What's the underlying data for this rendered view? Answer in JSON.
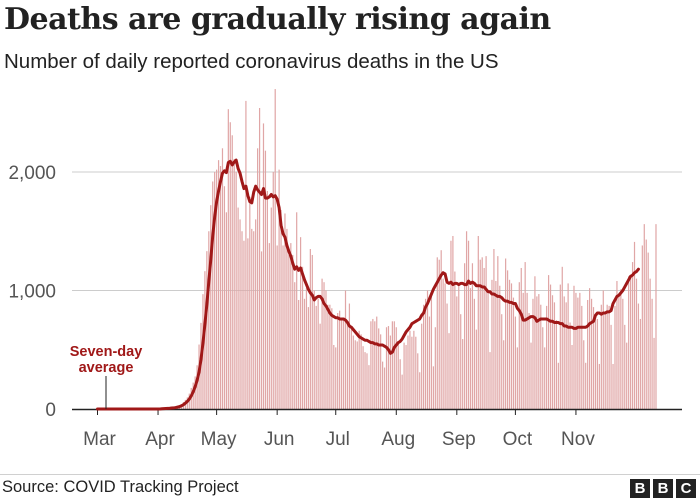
{
  "title": "Deaths are gradually rising again",
  "subtitle": "Number of daily reported coronavirus deaths in the US",
  "source": "Source: COVID Tracking Project",
  "logo": {
    "letters": [
      "B",
      "B",
      "C"
    ]
  },
  "colors": {
    "bars": "#e0a6a6",
    "line": "#a01818",
    "grid": "#cccccc",
    "text": "#222222",
    "axis": "#222222"
  },
  "chart_data": {
    "type": "bar",
    "title": "Deaths are gradually rising again",
    "subtitle": "Number of daily reported coronavirus deaths in the US",
    "xlabel": "",
    "ylabel": "",
    "ylim": [
      0,
      2700
    ],
    "yticks": [
      0,
      1000,
      2000
    ],
    "ytick_labels": [
      "0",
      "1,000",
      "2,000"
    ],
    "xtick_labels": [
      "Mar",
      "Apr",
      "May",
      "Jun",
      "Jul",
      "Aug",
      "Sep",
      "Oct",
      "Nov"
    ],
    "grid": true,
    "annotation": {
      "text": [
        "Seven-day",
        "average"
      ],
      "target": "7-day average line, early March"
    },
    "series": [
      {
        "name": "Daily deaths",
        "type": "bar",
        "x_start": "2020-03-01",
        "x_end": "2020-11-18",
        "values": [
          0,
          0,
          0,
          0,
          0,
          0,
          0,
          0,
          0,
          0,
          0,
          0,
          0,
          0,
          0,
          0,
          0,
          0,
          0,
          0,
          0,
          0,
          0,
          0,
          0,
          0,
          0,
          0,
          0,
          0,
          0,
          0,
          1,
          3,
          4,
          7,
          9,
          10,
          12,
          14,
          18,
          22,
          29,
          40,
          59,
          77,
          98,
          130,
          178,
          223,
          275,
          369,
          544,
          727,
          969,
          1163,
          1332,
          1500,
          1720,
          1920,
          2000,
          2020,
          2100,
          2050,
          2200,
          1880,
          1660,
          2530,
          2420,
          2310,
          2110,
          2000,
          1700,
          1600,
          1500,
          1420,
          2600,
          1440,
          1790,
          1520,
          1500,
          1600,
          2200,
          2540,
          1330,
          2410,
          2180,
          1840,
          1400,
          1700,
          2000,
          2700,
          1380,
          2020,
          1680,
          1380,
          1650,
          1520,
          1300,
          1400,
          1300,
          1070,
          1660,
          920,
          1450,
          1200,
          930,
          1020,
          860,
          1350,
          1300,
          1000,
          870,
          930,
          720,
          1100,
          1070,
          1000,
          880,
          880,
          850,
          540,
          520,
          810,
          830,
          770,
          760,
          1000,
          740,
          890,
          670,
          620,
          580,
          570,
          660,
          630,
          530,
          480,
          470,
          370,
          740,
          760,
          740,
          780,
          680,
          630,
          400,
          350,
          690,
          700,
          620,
          740,
          740,
          690,
          550,
          420,
          290,
          560,
          540,
          620,
          660,
          610,
          660,
          610,
          470,
          310,
          720,
          880,
          930,
          1000,
          780,
          950,
          360,
          690,
          1280,
          1260,
          1340,
          1100,
          1060,
          890,
          640,
          1420,
          1460,
          1160,
          950,
          1040,
          800,
          590,
          1230,
          1500,
          1420,
          1020,
          1230,
          930,
          670,
          1460,
          1260,
          1280,
          1190,
          1290,
          1000,
          480,
          1090,
          1350,
          1080,
          1290,
          1040,
          800,
          580,
          1270,
          1170,
          1090,
          1060,
          940,
          780,
          520,
          1070,
          1190,
          980,
          1240,
          980,
          810,
          560,
          930,
          1120,
          950,
          970,
          880,
          690,
          520,
          870,
          1130,
          1050,
          960,
          900,
          750,
          390,
          1050,
          1200,
          950,
          900,
          1060,
          730,
          540,
          1040,
          980,
          940,
          980,
          870,
          580,
          390,
          920,
          1020,
          930,
          860,
          800,
          760,
          380,
          880,
          1000,
          820,
          880,
          870,
          710,
          380,
          870,
          1080,
          960,
          1010,
          930,
          710,
          560,
          1120,
          1110,
          1240,
          1410,
          1100,
          890,
          760,
          1380,
          1560,
          1430,
          1320,
          1100,
          930,
          600,
          1560
        ]
      },
      {
        "name": "Seven-day average",
        "type": "line",
        "values": [
          0,
          0,
          0,
          0,
          0,
          0,
          0,
          0,
          0,
          0,
          0,
          0,
          0,
          0,
          0,
          0,
          0,
          0,
          0,
          0,
          0,
          0,
          0,
          0,
          0,
          0,
          0,
          0,
          0,
          0,
          0,
          0,
          0,
          2,
          3,
          4,
          5,
          6,
          8,
          9,
          12,
          16,
          20,
          27,
          36,
          49,
          64,
          84,
          111,
          145,
          188,
          242,
          311,
          419,
          555,
          715,
          883,
          1075,
          1259,
          1460,
          1620,
          1750,
          1840,
          1920,
          1990,
          2010,
          1995,
          2080,
          2090,
          2060,
          2085,
          2100,
          2030,
          1990,
          1920,
          1860,
          1880,
          1800,
          1750,
          1740,
          1830,
          1880,
          1850,
          1830,
          1810,
          1860,
          1780,
          1780,
          1790,
          1810,
          1790,
          1800,
          1770,
          1700,
          1550,
          1480,
          1450,
          1380,
          1330,
          1290,
          1230,
          1180,
          1200,
          1170,
          1190,
          1140,
          1090,
          1050,
          1010,
          980,
          960,
          920,
          940,
          950,
          950,
          930,
          890,
          870,
          840,
          810,
          790,
          780,
          770,
          770,
          760,
          760,
          760,
          750,
          730,
          700,
          690,
          670,
          650,
          630,
          610,
          600,
          590,
          580,
          580,
          570,
          560,
          560,
          550,
          550,
          540,
          540,
          540,
          530,
          520,
          500,
          470,
          480,
          520,
          540,
          560,
          570,
          590,
          620,
          650,
          670,
          690,
          720,
          730,
          740,
          750,
          760,
          790,
          810,
          860,
          890,
          930,
          970,
          1010,
          1040,
          1070,
          1100,
          1130,
          1150,
          1140,
          1070,
          1060,
          1070,
          1050,
          1060,
          1060,
          1050,
          1060,
          1060,
          1050,
          1050,
          1080,
          1060,
          1070,
          1060,
          1040,
          1040,
          1040,
          1030,
          1030,
          1010,
          990,
          990,
          970,
          970,
          960,
          950,
          950,
          940,
          920,
          910,
          910,
          900,
          900,
          890,
          890,
          850,
          830,
          800,
          750,
          750,
          760,
          770,
          780,
          780,
          770,
          740,
          750,
          760,
          760,
          760,
          760,
          750,
          740,
          740,
          730,
          730,
          730,
          720,
          720,
          700,
          700,
          690,
          690,
          690,
          680,
          680,
          690,
          690,
          690,
          690,
          690,
          700,
          720,
          730,
          740,
          790,
          810,
          810,
          800,
          810,
          810,
          820,
          820,
          830,
          890,
          920,
          950,
          960,
          980,
          1000,
          1030,
          1060,
          1090,
          1120,
          1130,
          1150,
          1160,
          1180
        ]
      }
    ]
  }
}
